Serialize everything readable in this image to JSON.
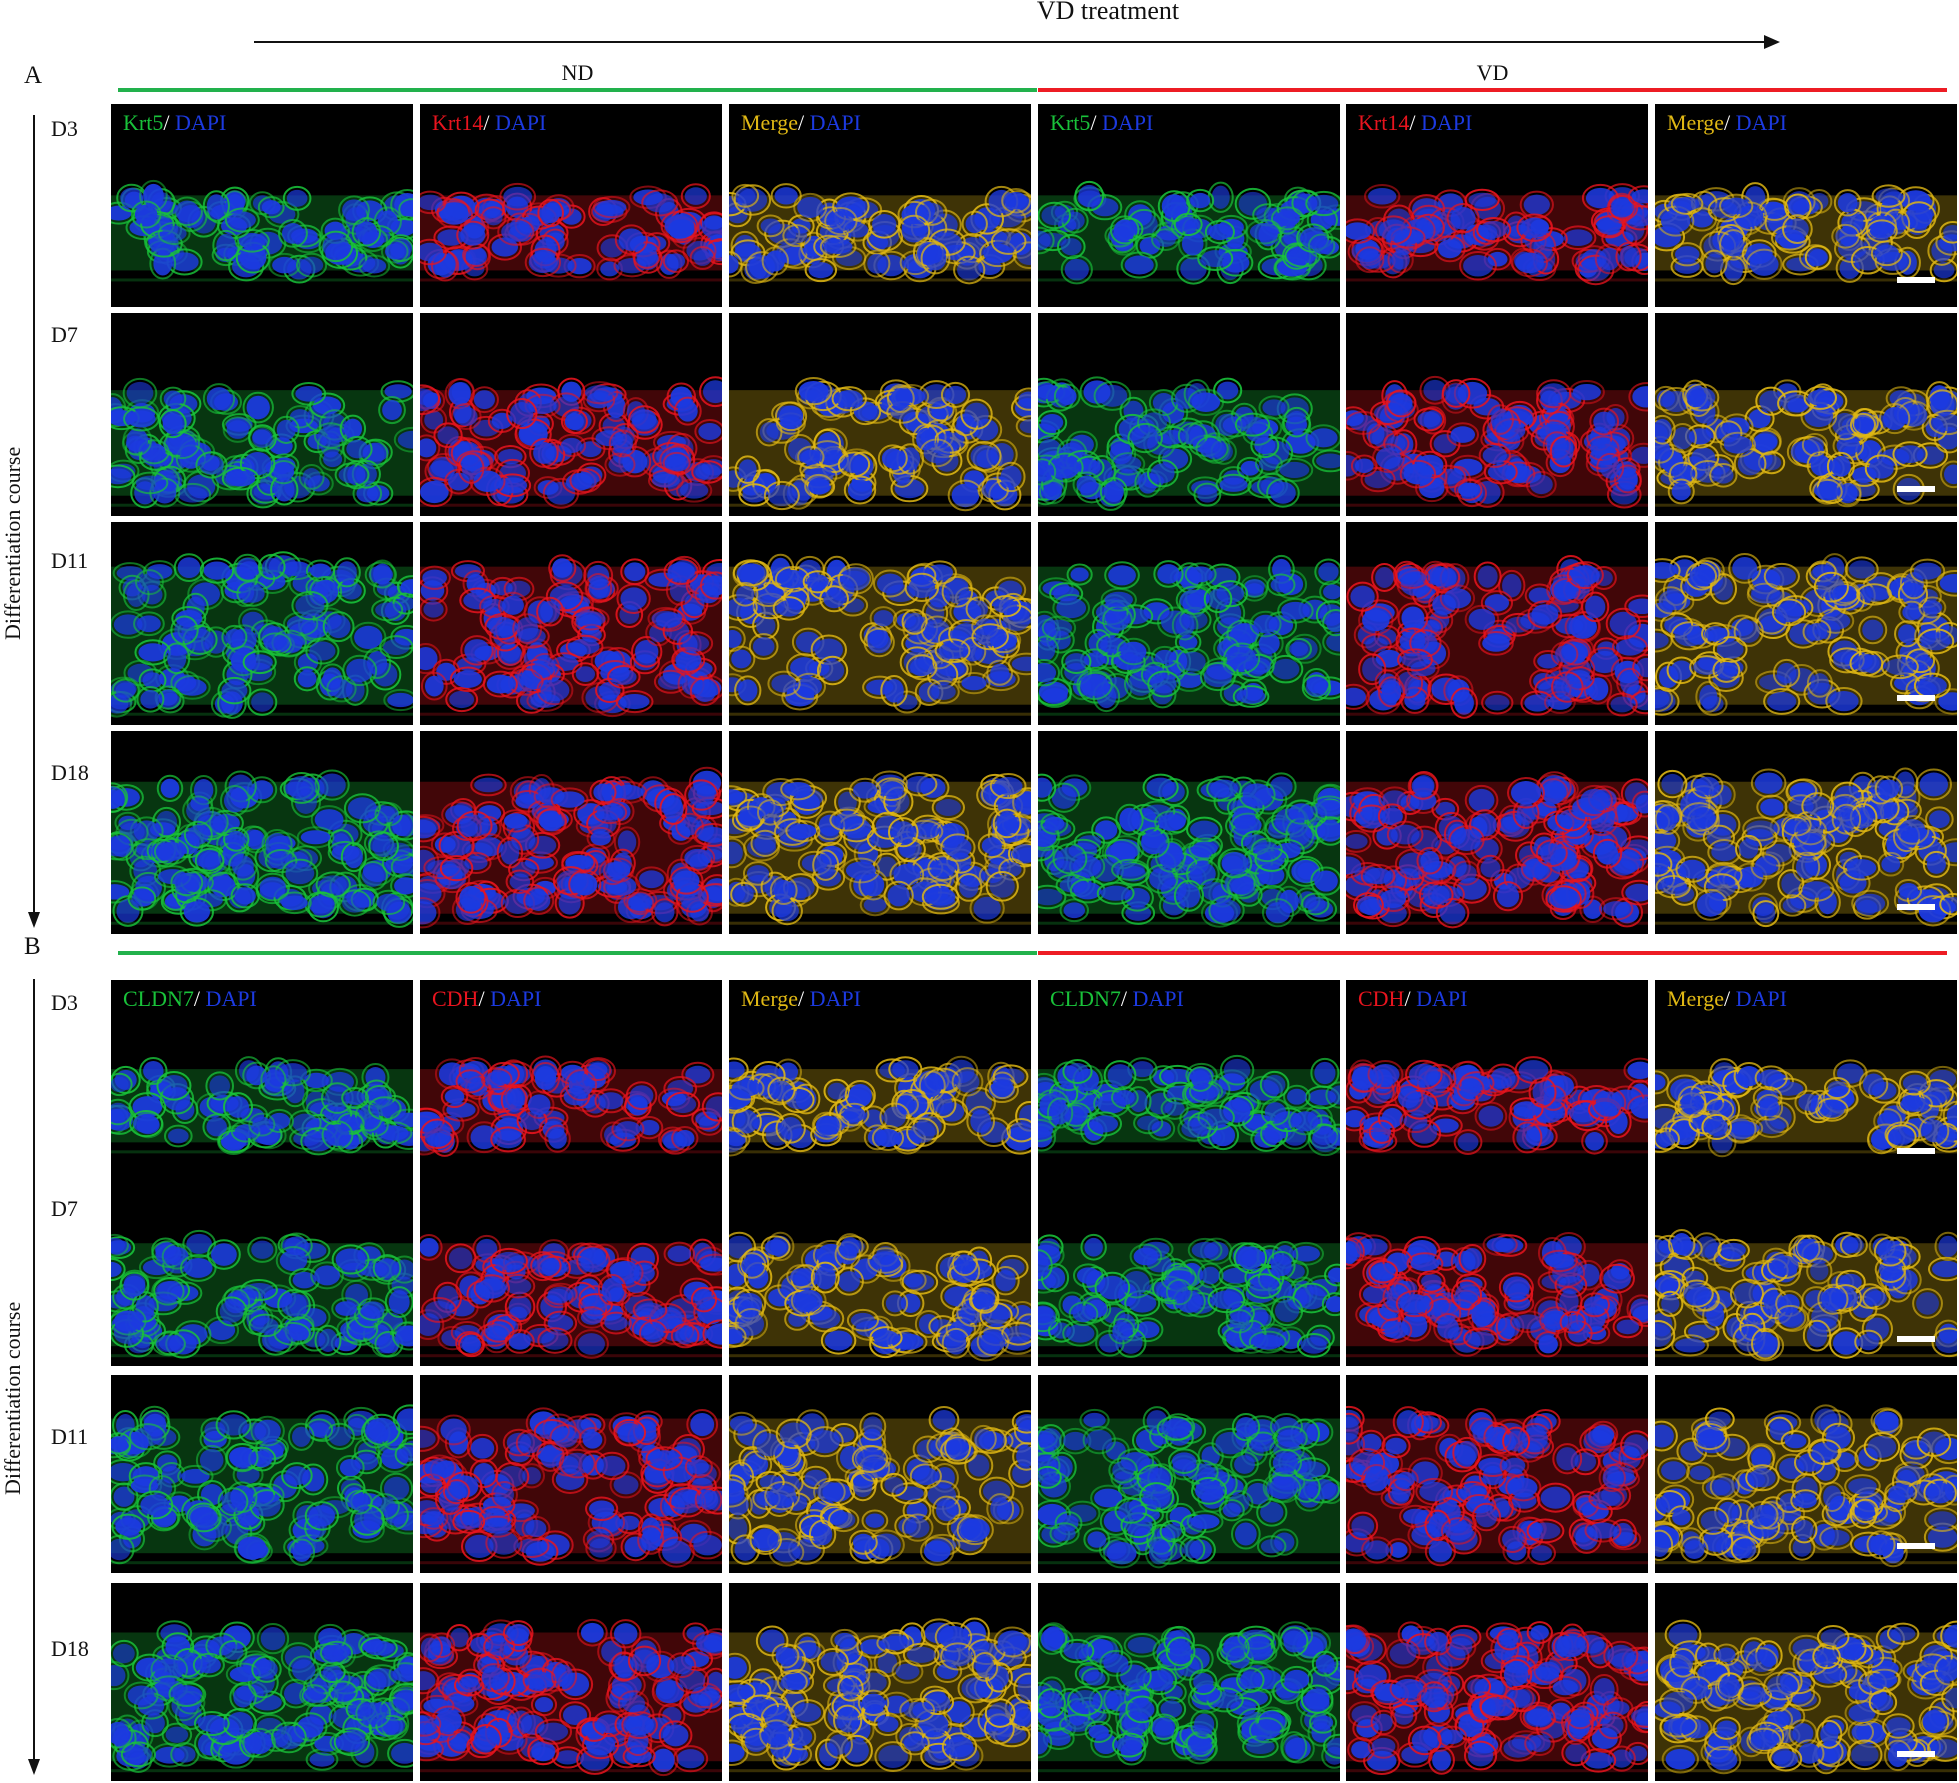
{
  "top_arrow_label": "VD  treatment",
  "panels": [
    {
      "letter": "A",
      "groups": [
        {
          "name": "ND",
          "color": "#22b14c"
        },
        {
          "name": "VD",
          "color": "#ed1c24"
        }
      ],
      "axis_label": "Differentiation course",
      "days": [
        "D3",
        "D7",
        "D11",
        "D18"
      ],
      "columns": [
        {
          "marker": "Krt5",
          "sep": "/ ",
          "dapi": "DAPI",
          "channel": "green"
        },
        {
          "marker": "Krt14",
          "sep": "/ ",
          "dapi": "DAPI",
          "channel": "red"
        },
        {
          "marker": "Merge",
          "sep": "/ ",
          "dapi": "DAPI",
          "channel": "yellow"
        },
        {
          "marker": "Krt5",
          "sep": "/ ",
          "dapi": "DAPI",
          "channel": "green"
        },
        {
          "marker": "Krt14",
          "sep": "/ ",
          "dapi": "DAPI",
          "channel": "red"
        },
        {
          "marker": "Merge",
          "sep": "/ ",
          "dapi": "DAPI",
          "channel": "yellow"
        }
      ]
    },
    {
      "letter": "B",
      "groups": [
        {
          "name": "",
          "color": "#22b14c"
        },
        {
          "name": "",
          "color": "#ed1c24"
        }
      ],
      "axis_label": "Differentiation course",
      "days": [
        "D3",
        "D7",
        "D11",
        "D18"
      ],
      "columns": [
        {
          "marker": "CLDN7",
          "sep": "/ ",
          "dapi": "DAPI",
          "channel": "green"
        },
        {
          "marker": "CDH",
          "sep": "/ ",
          "dapi": "DAPI",
          "channel": "red"
        },
        {
          "marker": "Merge",
          "sep": "/ ",
          "dapi": "DAPI",
          "channel": "yellow"
        },
        {
          "marker": "CLDN7",
          "sep": "/ ",
          "dapi": "DAPI",
          "channel": "green"
        },
        {
          "marker": "CDH",
          "sep": "/ ",
          "dapi": "DAPI",
          "channel": "red"
        },
        {
          "marker": "Merge",
          "sep": "/ ",
          "dapi": "DAPI",
          "channel": "yellow"
        }
      ]
    }
  ],
  "colors": {
    "green": "#19c23a",
    "red": "#e8141e",
    "yellow": "#e0b814",
    "dapi": "#1c3ae0",
    "scale_bar": "#ffffff"
  }
}
